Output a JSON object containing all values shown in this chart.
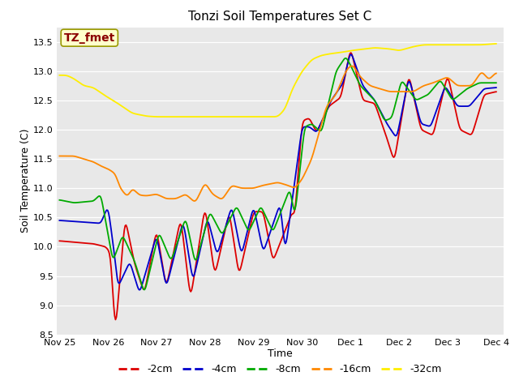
{
  "title": "Tonzi Soil Temperatures Set C",
  "xlabel": "Time",
  "ylabel": "Soil Temperature (C)",
  "ylim": [
    8.5,
    13.75
  ],
  "fig_bg_color": "#ffffff",
  "plot_bg_color": "#e8e8e8",
  "annotation_text": "TZ_fmet",
  "annotation_color": "#8b0000",
  "annotation_bg": "#ffffcc",
  "annotation_border": "#999900",
  "legend_entries": [
    "-2cm",
    "-4cm",
    "-8cm",
    "-16cm",
    "-32cm"
  ],
  "line_colors": [
    "#dd0000",
    "#0000cc",
    "#00aa00",
    "#ff8800",
    "#ffee00"
  ],
  "xtick_labels": [
    "Nov 25",
    "Nov 26",
    "Nov 27",
    "Nov 28",
    "Nov 29",
    "Nov 30",
    "Dec 1",
    "Dec 2",
    "Dec 3",
    "Dec 4"
  ],
  "xtick_positions": [
    0,
    1,
    2,
    3,
    4,
    5,
    6,
    7,
    8,
    9
  ],
  "ytick_labels": [
    "8.5",
    "9.0",
    "9.5",
    "10.0",
    "10.5",
    "11.0",
    "11.5",
    "12.0",
    "12.5",
    "13.0",
    "13.5"
  ],
  "ytick_positions": [
    8.5,
    9.0,
    9.5,
    10.0,
    10.5,
    11.0,
    11.5,
    12.0,
    12.5,
    13.0,
    13.5
  ]
}
